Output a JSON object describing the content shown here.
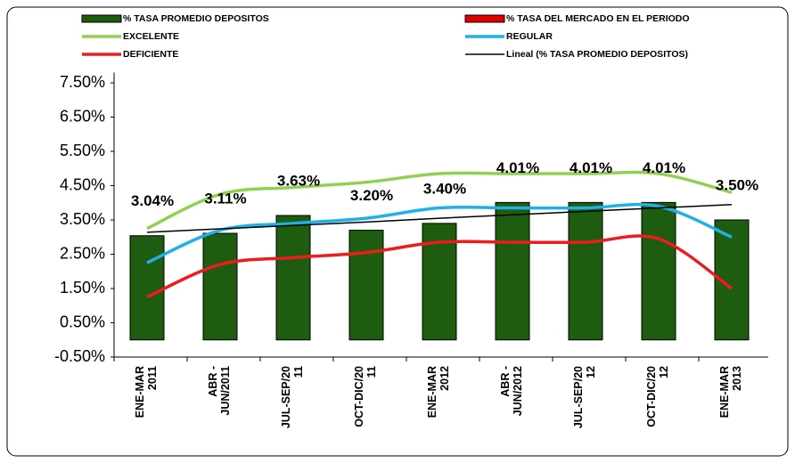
{
  "chart_data": {
    "type": "bar",
    "categories": [
      "ENE-MAR 2011",
      "ABR - JUN/2011",
      "JUL-SEP/2011",
      "OCT-DIC/2011",
      "ENE-MAR 2012",
      "ABR - JUN/2012",
      "JUL-SEP/2012",
      "OCT-DIC/2012",
      "ENE-MAR 2013"
    ],
    "series": [
      {
        "name": "% TASA PROMEDIO DEPOSITOS",
        "type": "bar",
        "color": "#1e5c0f",
        "values": [
          3.04,
          3.11,
          3.63,
          3.2,
          3.4,
          4.01,
          4.01,
          4.01,
          3.5
        ],
        "value_labels": [
          "3.04%",
          "3.11%",
          "3.63%",
          "3.20%",
          "3.40%",
          "4.01%",
          "4.01%",
          "4.01%",
          "3.50%"
        ]
      },
      {
        "name": "% TASA DEL MERCADO EN EL PERIODO",
        "type": "bar",
        "color": "#e00000",
        "values": [
          null,
          null,
          null,
          null,
          null,
          null,
          null,
          null,
          null
        ]
      },
      {
        "name": "EXCELENTE",
        "type": "line",
        "color": "#92d050",
        "values": [
          3.25,
          4.25,
          4.45,
          4.6,
          4.85,
          4.85,
          4.85,
          4.85,
          4.3
        ]
      },
      {
        "name": "REGULAR",
        "type": "line",
        "color": "#1fb0e8",
        "values": [
          2.25,
          3.2,
          3.4,
          3.55,
          3.85,
          3.85,
          3.85,
          3.9,
          3.0
        ]
      },
      {
        "name": "DEFICIENTE",
        "type": "line",
        "color": "#ee1c1c",
        "values": [
          1.25,
          2.2,
          2.4,
          2.55,
          2.85,
          2.85,
          2.85,
          2.95,
          1.5
        ]
      },
      {
        "name": "Lineal (% TASA PROMEDIO DEPOSITOS)",
        "type": "trend",
        "color": "#000000",
        "values": [
          3.14,
          3.24,
          3.34,
          3.44,
          3.55,
          3.65,
          3.75,
          3.85,
          3.95
        ]
      }
    ],
    "ylim": [
      -0.5,
      7.8
    ],
    "yticks": [
      {
        "value": -0.5,
        "label": "-0.50%"
      },
      {
        "value": 0.5,
        "label": "0.50%"
      },
      {
        "value": 1.5,
        "label": "1.50%"
      },
      {
        "value": 2.5,
        "label": "2.50%"
      },
      {
        "value": 3.5,
        "label": "3.50%"
      },
      {
        "value": 4.5,
        "label": "4.50%"
      },
      {
        "value": 5.5,
        "label": "5.50%"
      },
      {
        "value": 6.5,
        "label": "6.50%"
      },
      {
        "value": 7.5,
        "label": "7.50%"
      }
    ],
    "grid": false
  }
}
